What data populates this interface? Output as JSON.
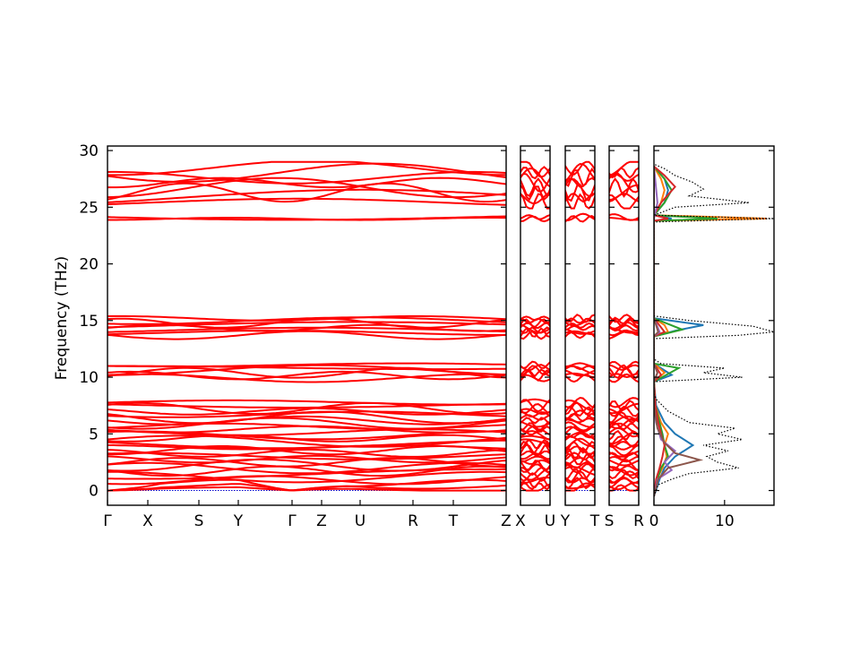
{
  "chart_data": {
    "type": "line",
    "ylabel": "Frequency (THz)",
    "ylim": [
      -1.3,
      30.4
    ],
    "yticks": [
      0,
      5,
      10,
      15,
      20,
      25,
      30
    ],
    "band_panels": [
      {
        "labels": [
          "Γ",
          "X",
          "S",
          "Y",
          "Γ",
          "Z",
          "U",
          "R",
          "T",
          "Z"
        ]
      },
      {
        "labels": [
          "X",
          "U"
        ]
      },
      {
        "labels": [
          "Y",
          "T"
        ]
      },
      {
        "labels": [
          "S",
          "R"
        ]
      }
    ],
    "band_groups": [
      {
        "range": [
          0.0,
          7.9
        ],
        "count": 30
      },
      {
        "range": [
          9.8,
          11.2
        ],
        "count": 6
      },
      {
        "range": [
          13.6,
          15.3
        ],
        "count": 8
      },
      {
        "range": [
          23.9,
          24.2
        ],
        "count": 2
      },
      {
        "range": [
          25.2,
          28.7
        ],
        "count": 8
      }
    ],
    "dos_panel": {
      "xlim": [
        0,
        17
      ],
      "xticks": [
        0,
        10
      ],
      "total": [
        {
          "f": -0.5,
          "d": 0
        },
        {
          "f": 0.5,
          "d": 0.6
        },
        {
          "f": 1.0,
          "d": 2.5
        },
        {
          "f": 1.5,
          "d": 5.0
        },
        {
          "f": 2.0,
          "d": 12.0
        },
        {
          "f": 2.5,
          "d": 9.0
        },
        {
          "f": 3.0,
          "d": 7.5
        },
        {
          "f": 3.5,
          "d": 10.5
        },
        {
          "f": 4.0,
          "d": 7.0
        },
        {
          "f": 4.5,
          "d": 12.5
        },
        {
          "f": 5.0,
          "d": 9.0
        },
        {
          "f": 5.5,
          "d": 11.5
        },
        {
          "f": 6.0,
          "d": 5.0
        },
        {
          "f": 6.5,
          "d": 3.5
        },
        {
          "f": 7.0,
          "d": 2.0
        },
        {
          "f": 8.0,
          "d": 0.4
        },
        {
          "f": 8.5,
          "d": 0
        },
        {
          "f": 9.6,
          "d": 0
        },
        {
          "f": 10.0,
          "d": 12.5
        },
        {
          "f": 10.4,
          "d": 7.0
        },
        {
          "f": 10.8,
          "d": 10.0
        },
        {
          "f": 11.2,
          "d": 1.0
        },
        {
          "f": 11.6,
          "d": 0
        },
        {
          "f": 13.4,
          "d": 0
        },
        {
          "f": 13.7,
          "d": 12.0
        },
        {
          "f": 14.0,
          "d": 17.0
        },
        {
          "f": 14.5,
          "d": 14.0
        },
        {
          "f": 15.0,
          "d": 5.0
        },
        {
          "f": 15.4,
          "d": 0
        },
        {
          "f": 23.7,
          "d": 0
        },
        {
          "f": 24.0,
          "d": 17.0
        },
        {
          "f": 24.3,
          "d": 0
        },
        {
          "f": 25.0,
          "d": 3.0
        },
        {
          "f": 25.4,
          "d": 13.5
        },
        {
          "f": 26.0,
          "d": 5.0
        },
        {
          "f": 26.6,
          "d": 7.0
        },
        {
          "f": 27.2,
          "d": 5.5
        },
        {
          "f": 27.8,
          "d": 3.0
        },
        {
          "f": 28.4,
          "d": 1.5
        },
        {
          "f": 28.8,
          "d": 0
        }
      ],
      "partials": [
        {
          "color": "#1f77b4",
          "points": [
            {
              "f": -0.5,
              "d": 0
            },
            {
              "f": 1.0,
              "d": 0.8
            },
            {
              "f": 2.0,
              "d": 1.5
            },
            {
              "f": 3.0,
              "d": 3.0
            },
            {
              "f": 4.0,
              "d": 5.5
            },
            {
              "f": 5.0,
              "d": 3.0
            },
            {
              "f": 6.0,
              "d": 1.5
            },
            {
              "f": 7.5,
              "d": 0.3
            },
            {
              "f": 9.6,
              "d": 0
            },
            {
              "f": 10.2,
              "d": 2.5
            },
            {
              "f": 10.6,
              "d": 1.5
            },
            {
              "f": 11.2,
              "d": 0
            },
            {
              "f": 13.6,
              "d": 0
            },
            {
              "f": 14.1,
              "d": 3.0
            },
            {
              "f": 14.6,
              "d": 7.0
            },
            {
              "f": 15.2,
              "d": 0
            },
            {
              "f": 23.8,
              "d": 0
            },
            {
              "f": 24.0,
              "d": 2.5
            },
            {
              "f": 24.3,
              "d": 0
            },
            {
              "f": 25.4,
              "d": 1.5
            },
            {
              "f": 26.5,
              "d": 2.0
            },
            {
              "f": 27.5,
              "d": 1.5
            },
            {
              "f": 28.6,
              "d": 0
            }
          ]
        },
        {
          "color": "#ff7f0e",
          "points": [
            {
              "f": -0.5,
              "d": 0
            },
            {
              "f": 1.0,
              "d": 0.4
            },
            {
              "f": 2.0,
              "d": 1.2
            },
            {
              "f": 3.0,
              "d": 1.8
            },
            {
              "f": 4.0,
              "d": 1.5
            },
            {
              "f": 5.0,
              "d": 2.0
            },
            {
              "f": 6.0,
              "d": 1.0
            },
            {
              "f": 7.5,
              "d": 0.2
            },
            {
              "f": 9.6,
              "d": 0
            },
            {
              "f": 10.4,
              "d": 1.5
            },
            {
              "f": 11.2,
              "d": 0
            },
            {
              "f": 13.6,
              "d": 0
            },
            {
              "f": 14.0,
              "d": 2.0
            },
            {
              "f": 14.6,
              "d": 1.5
            },
            {
              "f": 15.2,
              "d": 0
            },
            {
              "f": 23.8,
              "d": 0
            },
            {
              "f": 24.0,
              "d": 16.0
            },
            {
              "f": 24.3,
              "d": 0
            },
            {
              "f": 25.4,
              "d": 1.0
            },
            {
              "f": 26.5,
              "d": 1.5
            },
            {
              "f": 27.5,
              "d": 1.0
            },
            {
              "f": 28.6,
              "d": 0
            }
          ]
        },
        {
          "color": "#2ca02c",
          "points": [
            {
              "f": -0.5,
              "d": 0
            },
            {
              "f": 1.0,
              "d": 0.5
            },
            {
              "f": 2.0,
              "d": 1.0
            },
            {
              "f": 3.0,
              "d": 2.0
            },
            {
              "f": 4.0,
              "d": 1.5
            },
            {
              "f": 5.0,
              "d": 1.2
            },
            {
              "f": 6.0,
              "d": 0.8
            },
            {
              "f": 7.5,
              "d": 0.2
            },
            {
              "f": 9.6,
              "d": 0
            },
            {
              "f": 10.8,
              "d": 3.5
            },
            {
              "f": 11.2,
              "d": 0
            },
            {
              "f": 13.6,
              "d": 0
            },
            {
              "f": 14.2,
              "d": 4.0
            },
            {
              "f": 15.2,
              "d": 0
            },
            {
              "f": 23.8,
              "d": 0
            },
            {
              "f": 24.0,
              "d": 9.0
            },
            {
              "f": 24.3,
              "d": 0
            },
            {
              "f": 25.4,
              "d": 1.5
            },
            {
              "f": 26.5,
              "d": 2.5
            },
            {
              "f": 27.5,
              "d": 1.5
            },
            {
              "f": 28.6,
              "d": 0
            }
          ]
        },
        {
          "color": "#d62728",
          "points": [
            {
              "f": -0.5,
              "d": 0
            },
            {
              "f": 1.0,
              "d": 0.3
            },
            {
              "f": 2.0,
              "d": 0.8
            },
            {
              "f": 3.0,
              "d": 1.2
            },
            {
              "f": 4.0,
              "d": 1.5
            },
            {
              "f": 5.0,
              "d": 1.0
            },
            {
              "f": 6.0,
              "d": 0.6
            },
            {
              "f": 7.5,
              "d": 0.2
            },
            {
              "f": 9.6,
              "d": 0
            },
            {
              "f": 10.2,
              "d": 1.0
            },
            {
              "f": 11.2,
              "d": 0
            },
            {
              "f": 13.6,
              "d": 0
            },
            {
              "f": 14.0,
              "d": 1.5
            },
            {
              "f": 15.2,
              "d": 0
            },
            {
              "f": 23.8,
              "d": 0
            },
            {
              "f": 24.0,
              "d": 2.0
            },
            {
              "f": 24.3,
              "d": 0
            },
            {
              "f": 25.4,
              "d": 1.0
            },
            {
              "f": 26.8,
              "d": 3.0
            },
            {
              "f": 27.8,
              "d": 1.5
            },
            {
              "f": 28.6,
              "d": 0
            }
          ]
        },
        {
          "color": "#9467bd",
          "points": [
            {
              "f": -0.5,
              "d": 0
            },
            {
              "f": 1.0,
              "d": 0.5
            },
            {
              "f": 1.8,
              "d": 2.5
            },
            {
              "f": 2.5,
              "d": 1.5
            },
            {
              "f": 3.5,
              "d": 3.0
            },
            {
              "f": 4.5,
              "d": 1.0
            },
            {
              "f": 6.0,
              "d": 0.3
            },
            {
              "f": 7.5,
              "d": 0
            },
            {
              "f": 9.6,
              "d": 0
            },
            {
              "f": 10.4,
              "d": 0.5
            },
            {
              "f": 11.2,
              "d": 0
            },
            {
              "f": 13.6,
              "d": 0
            },
            {
              "f": 14.0,
              "d": 0.8
            },
            {
              "f": 15.2,
              "d": 0
            },
            {
              "f": 24.0,
              "d": 0
            },
            {
              "f": 25.4,
              "d": 0.5
            },
            {
              "f": 28.6,
              "d": 0
            }
          ]
        },
        {
          "color": "#8c564b",
          "points": [
            {
              "f": -0.5,
              "d": 0
            },
            {
              "f": 1.0,
              "d": 0.6
            },
            {
              "f": 2.0,
              "d": 2.0
            },
            {
              "f": 2.7,
              "d": 6.5
            },
            {
              "f": 3.3,
              "d": 3.0
            },
            {
              "f": 4.2,
              "d": 1.5
            },
            {
              "f": 5.5,
              "d": 0.5
            },
            {
              "f": 7.5,
              "d": 0
            },
            {
              "f": 9.6,
              "d": 0
            },
            {
              "f": 10.4,
              "d": 0.5
            },
            {
              "f": 11.2,
              "d": 0
            },
            {
              "f": 13.6,
              "d": 0
            },
            {
              "f": 14.0,
              "d": 0.6
            },
            {
              "f": 15.2,
              "d": 0
            },
            {
              "f": 24.0,
              "d": 0
            },
            {
              "f": 28.6,
              "d": 0
            }
          ]
        }
      ]
    }
  }
}
